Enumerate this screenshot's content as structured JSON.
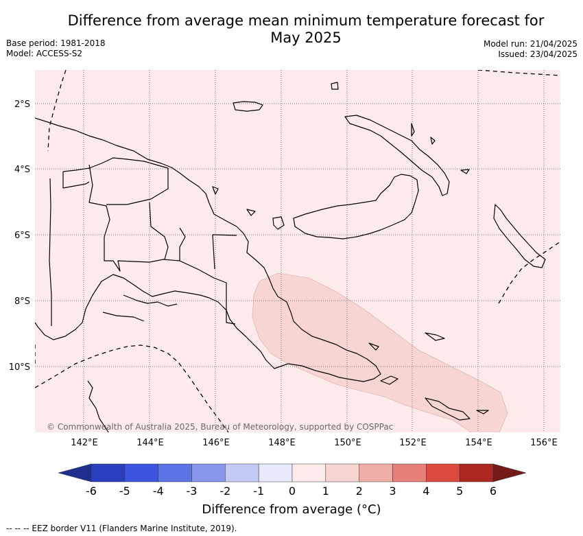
{
  "title": "Difference from average mean minimum temperature forecast for May 2025",
  "title_line1": "Difference from average mean minimum temperature forecast for",
  "title_line2": "May 2025",
  "base_period": "Base period: 1981-2018",
  "model": "Model: ACCESS-S2",
  "model_run": "Model run: 21/04/2025",
  "issued": "Issued: 23/04/2025",
  "copyright": "© Commonwealth of Australia 2025, Bureau of Meteorology, supported by COSPPac",
  "lat_labels": [
    "2°S",
    "4°S",
    "6°S",
    "8°S",
    "10°S"
  ],
  "lon_labels": [
    "142°E",
    "144°E",
    "146°E",
    "148°E",
    "150°E",
    "152°E",
    "154°E",
    "156°E"
  ],
  "colorbar": {
    "ticks": [
      "-6",
      "-5",
      "-4",
      "-3",
      "-2",
      "-1",
      "0",
      "1",
      "2",
      "3",
      "4",
      "5",
      "6"
    ],
    "colors": [
      "#1f2e8f",
      "#2a3fc0",
      "#3b55e0",
      "#5c74e6",
      "#8796ec",
      "#c3caf5",
      "#e8ebfb",
      "#fcebea",
      "#f7d5d2",
      "#f0aca6",
      "#e68078",
      "#db4a3c",
      "#ac2721",
      "#741b17"
    ],
    "label": "Difference from average (°C)"
  },
  "regions": {
    "background_category": "0 to 1",
    "background_color": "#fcebea",
    "anomaly_category": "1 to 2",
    "anomaly_color": "#f7d5d2"
  },
  "footer": "-- -- -- EEZ border V11 (Flanders Marine Institute, 2019)."
}
